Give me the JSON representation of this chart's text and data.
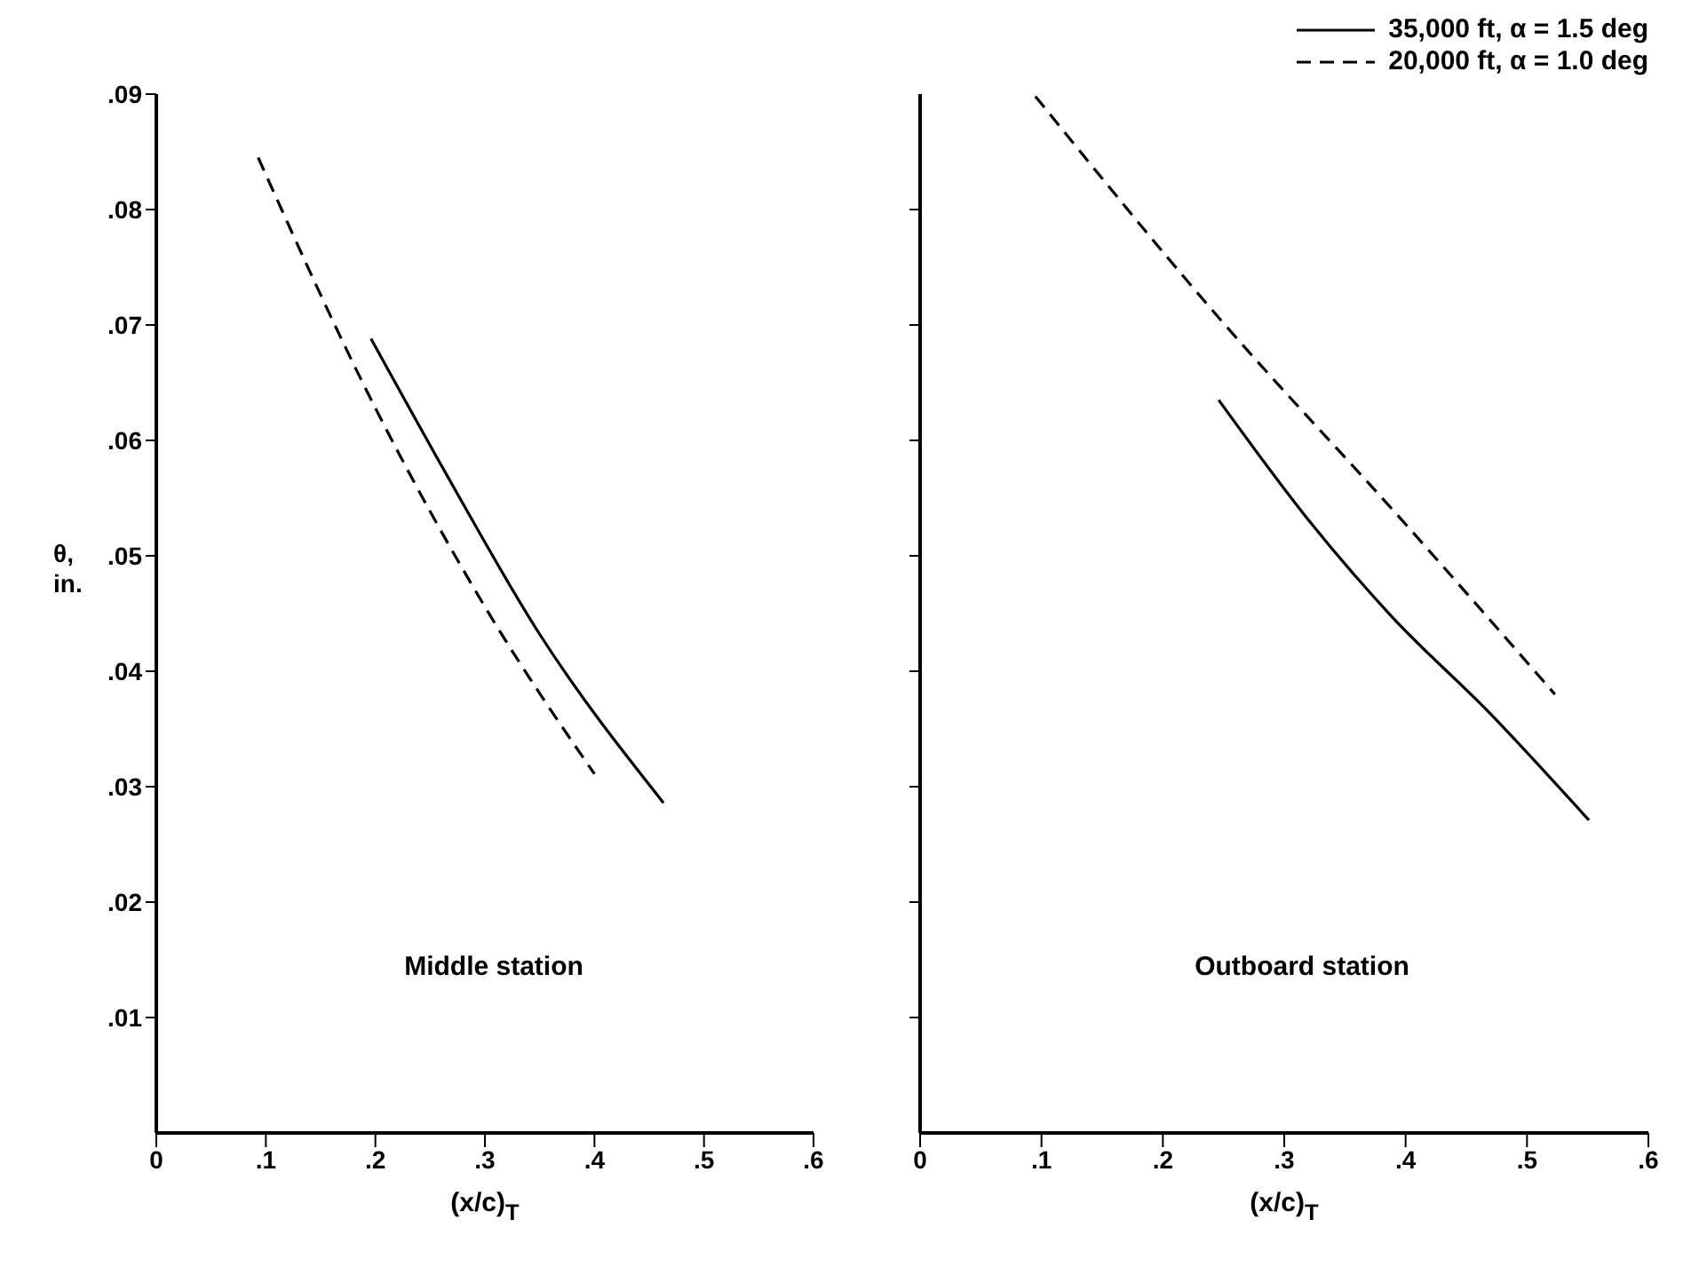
{
  "chart_data": [
    {
      "type": "line",
      "xlabel": "(x/c)$_{T}$",
      "ylabel": "θ, in.",
      "annotations": [
        "Middle station"
      ],
      "xlim": [
        0,
        0.6
      ],
      "ylim": [
        0,
        0.09
      ],
      "xticks": [
        0,
        {
          "value": 0.1,
          "label": ".1"
        },
        {
          "value": 0.2,
          "label": ".2"
        },
        {
          "value": 0.3,
          "label": ".3"
        },
        {
          "value": 0.4,
          "label": ".4"
        },
        {
          "value": 0.5,
          "label": ".5"
        },
        {
          "value": 0.6,
          "label": ".6"
        }
      ],
      "yticks": [
        {
          "value": 0.01,
          "label": ".01"
        },
        {
          "value": 0.02,
          "label": ".02"
        },
        {
          "value": 0.03,
          "label": ".03"
        },
        {
          "value": 0.04,
          "label": ".04"
        },
        {
          "value": 0.05,
          "label": ".05"
        },
        {
          "value": 0.06,
          "label": ".06"
        },
        {
          "value": 0.07,
          "label": ".07"
        },
        {
          "value": 0.08,
          "label": ".08"
        },
        {
          "value": 0.09,
          "label": ".09"
        }
      ],
      "grid": false,
      "legend": false,
      "marker": "none",
      "series": [
        {
          "color": "#000000",
          "line_style": "solid",
          "x": [
            0.196,
            0.264,
            0.348,
            0.463
          ],
          "values": [
            0.0688,
            0.0572,
            0.0435,
            0.0286
          ]
        },
        {
          "color": "#000000",
          "line_style": "dashed",
          "x": [
            0.093,
            0.2,
            0.305,
            0.4
          ],
          "values": [
            0.0845,
            0.0628,
            0.0448,
            0.0311
          ]
        }
      ]
    },
    {
      "type": "line",
      "xlabel": "(x/c)$_{T}$",
      "annotations": [
        "Outboard station"
      ],
      "xlim": [
        0,
        0.6
      ],
      "ylim": [
        0,
        0.09
      ],
      "xticks": [
        0,
        {
          "value": 0.1,
          "label": ".1"
        },
        {
          "value": 0.2,
          "label": ".2"
        },
        {
          "value": 0.3,
          "label": ".3"
        },
        {
          "value": 0.4,
          "label": ".4"
        },
        {
          "value": 0.5,
          "label": ".5"
        },
        {
          "value": 0.6,
          "label": ".6"
        }
      ],
      "yticks": [
        {
          "value": 0.01,
          "label": null
        },
        {
          "value": 0.02,
          "label": null
        },
        {
          "value": 0.03,
          "label": null
        },
        {
          "value": 0.04,
          "label": null
        },
        {
          "value": 0.05,
          "label": null
        },
        {
          "value": 0.06,
          "label": null
        },
        {
          "value": 0.07,
          "label": null
        },
        {
          "value": 0.08,
          "label": null
        }
      ],
      "tick_labels": "x",
      "grid": false,
      "legend": "top right",
      "marker": "none",
      "series": [
        {
          "name": "35,000 ft, α = 1.5 deg",
          "color": "#000000",
          "line_style": "solid",
          "x": [
            0.246,
            0.32,
            0.388,
            0.47,
            0.551
          ],
          "values": [
            0.0635,
            0.0531,
            0.0448,
            0.0363,
            0.0271
          ]
        },
        {
          "name": "20,000 ft, α = 1.0 deg",
          "color": "#000000",
          "line_style": "dashed",
          "x": [
            0.095,
            0.243,
            0.402,
            0.523
          ],
          "values": [
            0.0898,
            0.071,
            0.0525,
            0.038
          ]
        }
      ]
    }
  ]
}
